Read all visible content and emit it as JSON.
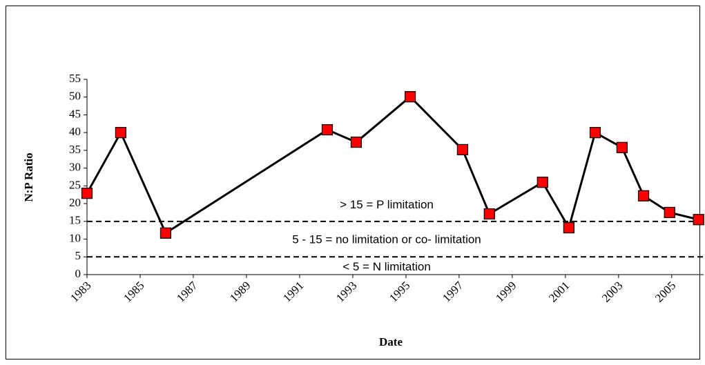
{
  "chart_data": {
    "type": "line",
    "x_label": "Date",
    "y_label": "N:P Ratio",
    "x": [
      1983.0,
      1984.27,
      1985.96,
      1992.04,
      1993.13,
      1995.16,
      1997.13,
      1998.14,
      2000.14,
      2001.13,
      2002.12,
      2003.13,
      2003.94,
      2004.92,
      2006.01
    ],
    "series": [
      {
        "color": "#000000",
        "marker_color": "#ff0000",
        "values": [
          22.9,
          40.0,
          11.7,
          40.8,
          37.3,
          50.1,
          35.2,
          17.1,
          26.0,
          13.2,
          40.0,
          35.8,
          22.2,
          17.5,
          15.5
        ]
      }
    ],
    "xlim": [
      1983,
      2006.2
    ],
    "xticks": [
      1983,
      1985,
      1987,
      1989,
      1991,
      1993,
      1995,
      1997,
      1999,
      2001,
      2003,
      2005
    ],
    "ylim": [
      0,
      55
    ],
    "yticks": [
      0,
      5,
      10,
      15,
      20,
      25,
      30,
      35,
      40,
      45,
      50,
      55
    ],
    "hlines": [
      15,
      5
    ],
    "annotations": [
      {
        "text": "> 15 = P limitation",
        "y": 19.5
      },
      {
        "text": "5 - 15 = no limitation or co- limitation",
        "y": 9.7
      },
      {
        "text": "< 5 = N limitation",
        "y": 2.0
      }
    ]
  }
}
